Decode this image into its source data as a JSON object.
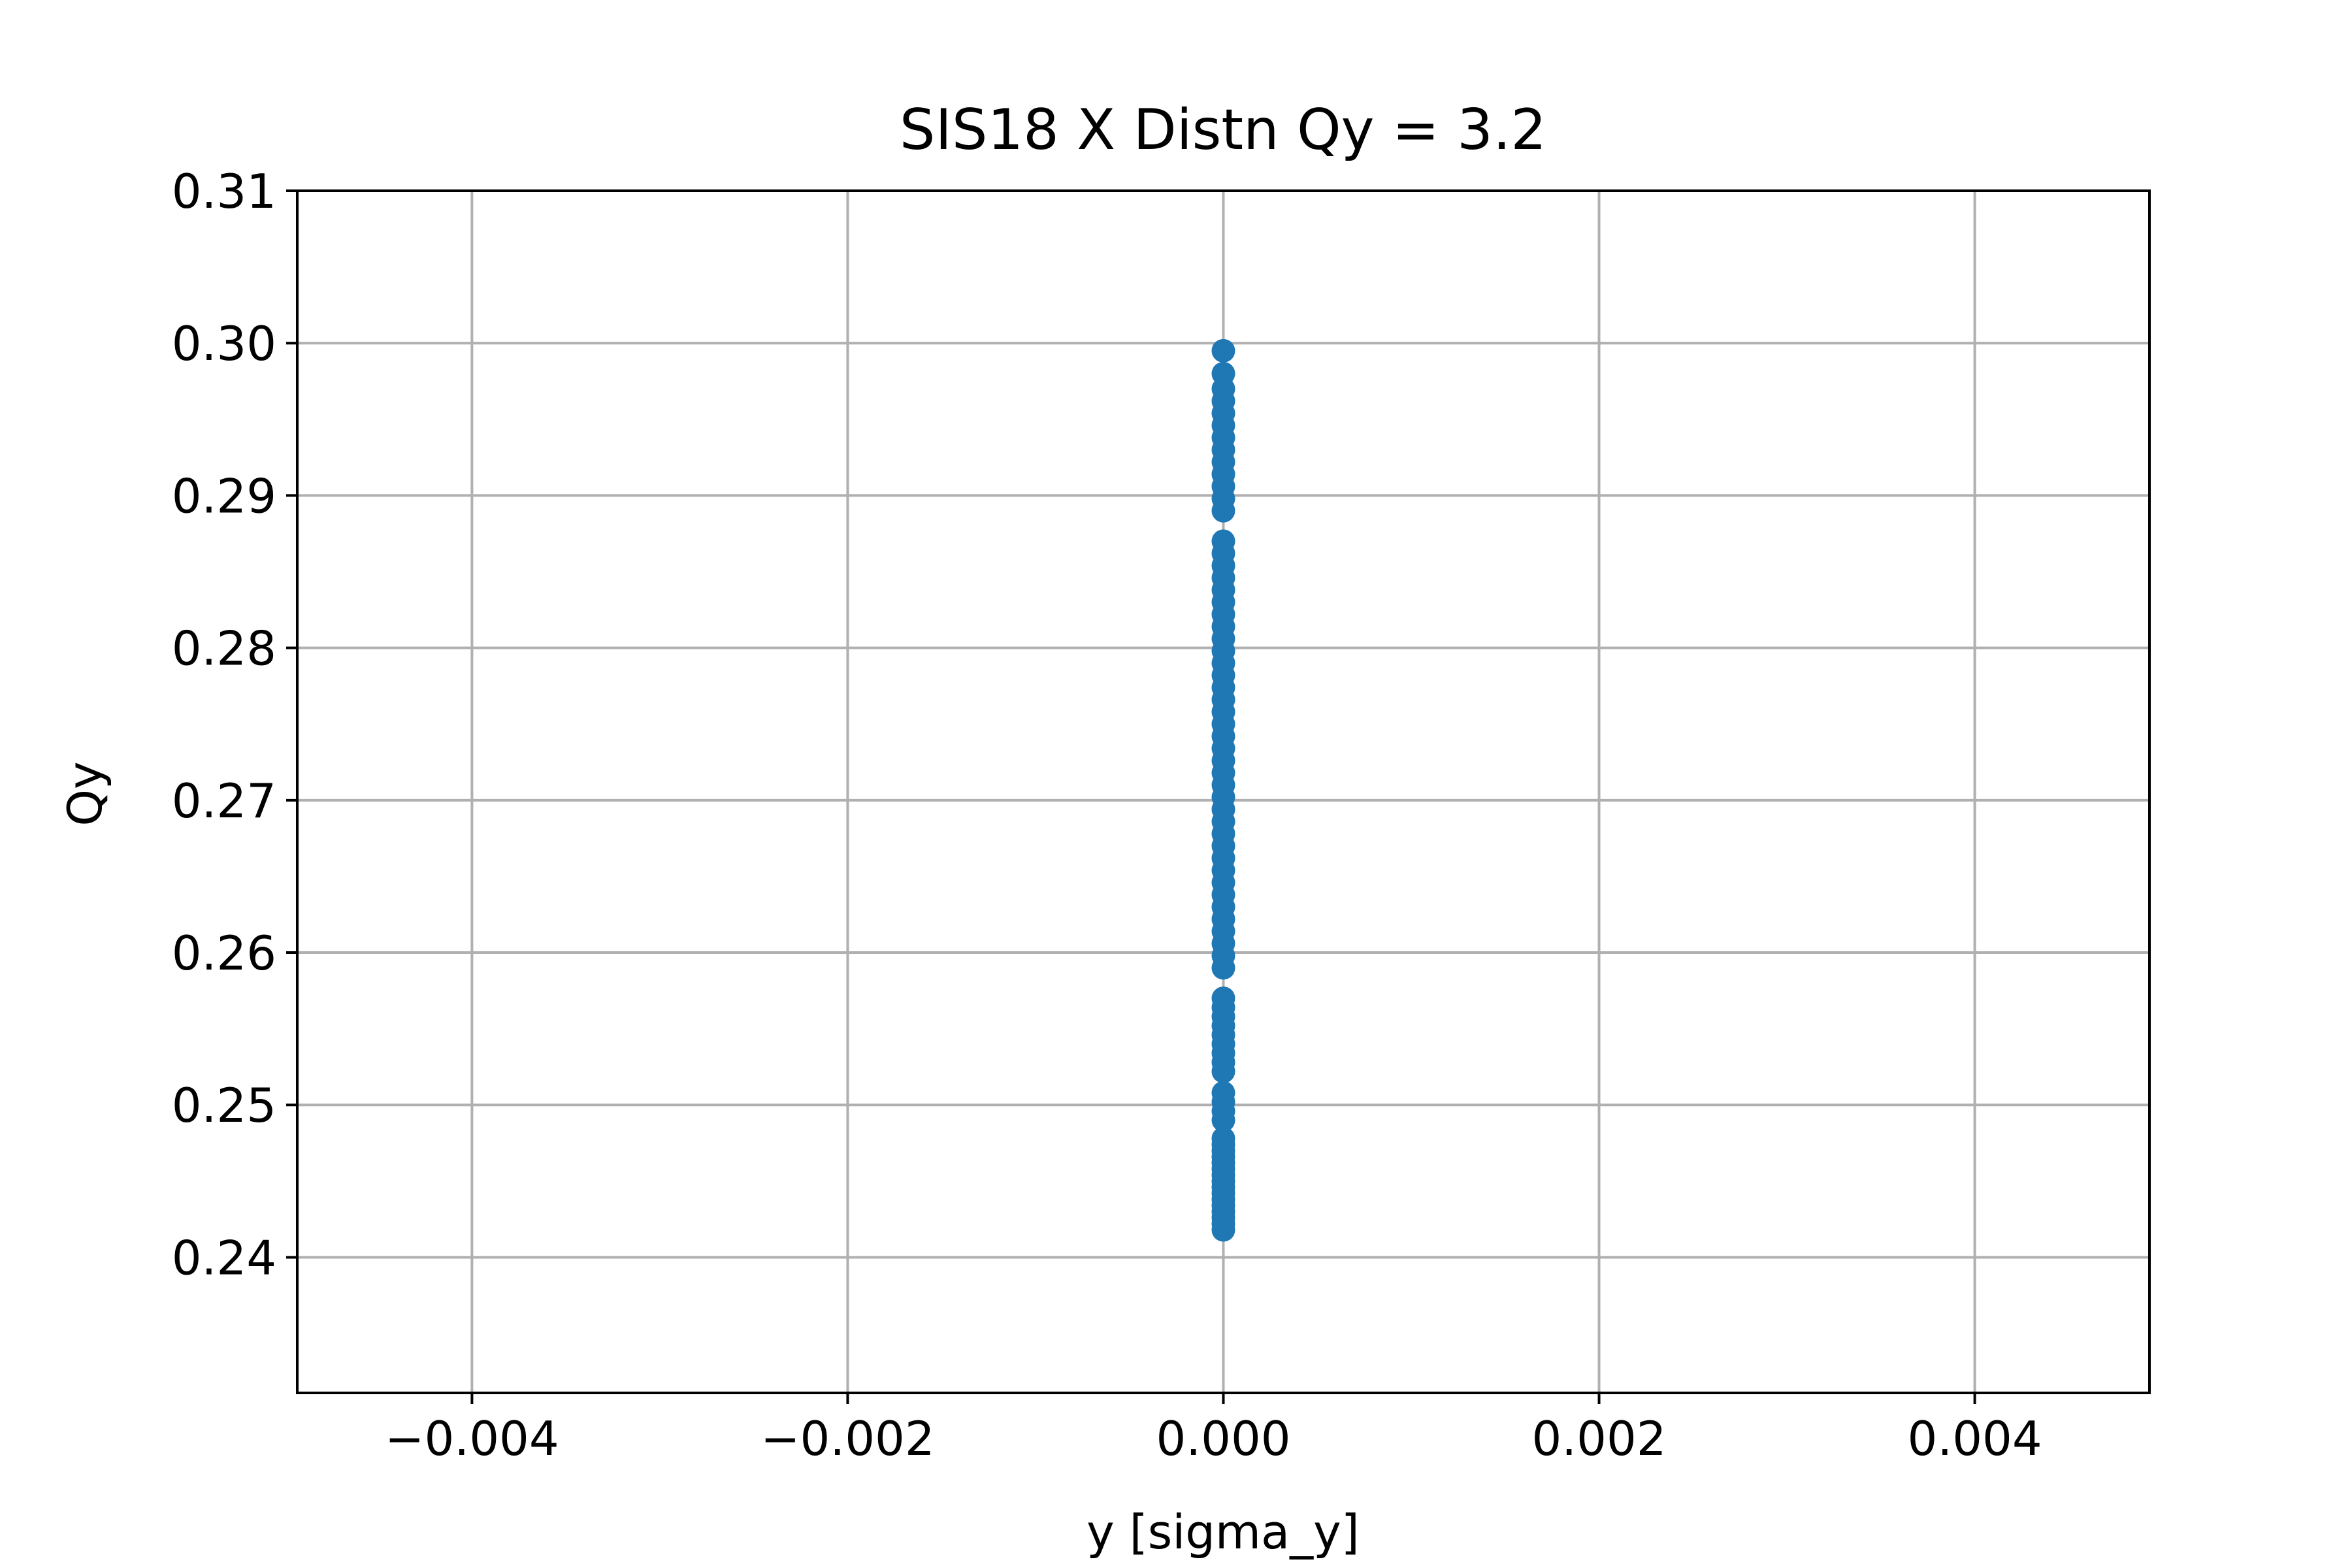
{
  "chart_data": {
    "type": "scatter",
    "title": "SIS18 X Distn Qy = 3.2",
    "xlabel": "y [sigma_y]",
    "ylabel": "Qy",
    "xlim": [
      -0.00493,
      0.00493
    ],
    "ylim": [
      0.2311,
      0.31
    ],
    "x_ticks": [
      -0.004,
      -0.002,
      0.0,
      0.002,
      0.004
    ],
    "x_tick_labels": [
      "−0.004",
      "−0.002",
      "0.000",
      "0.002",
      "0.004"
    ],
    "y_ticks": [
      0.24,
      0.25,
      0.26,
      0.27,
      0.28,
      0.29,
      0.3,
      0.31
    ],
    "y_tick_labels": [
      "0.24",
      "0.25",
      "0.26",
      "0.27",
      "0.28",
      "0.29",
      "0.30",
      "0.31"
    ],
    "grid": true,
    "legend": "none",
    "marker_color": "#1f77b4",
    "series": [
      {
        "x": [
          0,
          0,
          0,
          0,
          0,
          0,
          0,
          0,
          0,
          0,
          0,
          0,
          0,
          0,
          0,
          0,
          0,
          0,
          0,
          0,
          0,
          0,
          0,
          0,
          0,
          0,
          0,
          0,
          0,
          0,
          0,
          0,
          0,
          0,
          0,
          0,
          0,
          0,
          0,
          0,
          0,
          0,
          0,
          0,
          0,
          0,
          0,
          0,
          0,
          0,
          0,
          0,
          0,
          0,
          0,
          0,
          0,
          0,
          0,
          0,
          0,
          0,
          0,
          0,
          0,
          0,
          0,
          0,
          0,
          0,
          0,
          0,
          0,
          0,
          0,
          0,
          0,
          0
        ],
        "y": [
          0.2418,
          0.2422,
          0.2426,
          0.243,
          0.2434,
          0.2438,
          0.2442,
          0.2446,
          0.245,
          0.2454,
          0.2458,
          0.2462,
          0.2466,
          0.247,
          0.2474,
          0.2478,
          0.249,
          0.2496,
          0.2502,
          0.2508,
          0.2522,
          0.2528,
          0.2534,
          0.254,
          0.2546,
          0.2552,
          0.2558,
          0.2564,
          0.257,
          0.259,
          0.2598,
          0.2606,
          0.2614,
          0.2622,
          0.263,
          0.2638,
          0.2646,
          0.2654,
          0.2662,
          0.267,
          0.2678,
          0.2686,
          0.2694,
          0.2702,
          0.271,
          0.2718,
          0.2726,
          0.2734,
          0.2742,
          0.275,
          0.2758,
          0.2766,
          0.2774,
          0.2782,
          0.279,
          0.2798,
          0.2806,
          0.2814,
          0.2822,
          0.283,
          0.2838,
          0.2846,
          0.2854,
          0.2862,
          0.287,
          0.289,
          0.2898,
          0.2906,
          0.2914,
          0.2922,
          0.293,
          0.2938,
          0.2946,
          0.2954,
          0.2962,
          0.297,
          0.298,
          0.2995
        ]
      }
    ]
  }
}
